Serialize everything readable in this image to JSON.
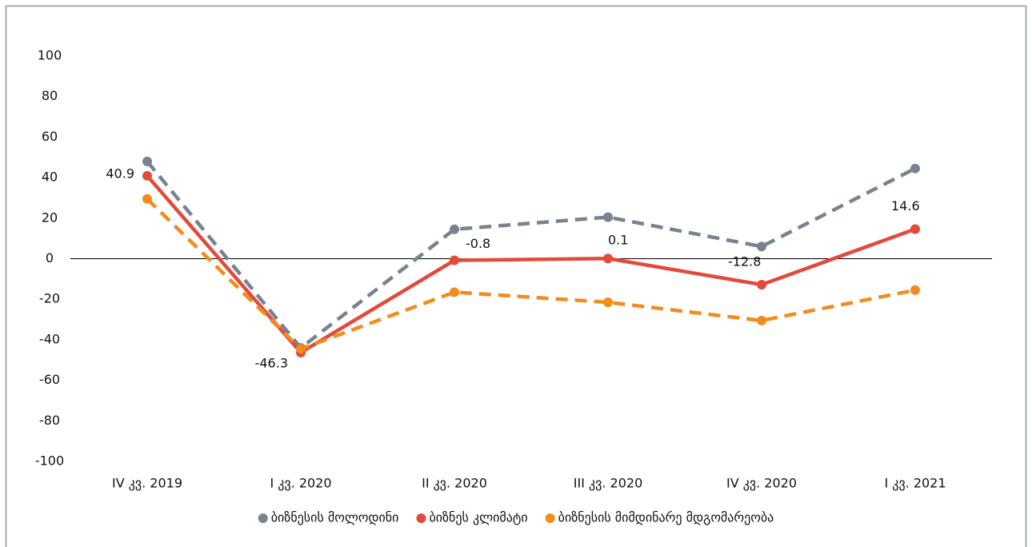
{
  "chart_data": {
    "type": "line",
    "categories": [
      "IV კვ. 2019",
      "I კვ. 2020",
      "II კვ. 2020",
      "III კვ. 2020",
      "IV კვ. 2020",
      "I კვ. 2021"
    ],
    "series": [
      {
        "name": "ბიზნესის მოლოდინი",
        "color": "#78838f",
        "dashed": true,
        "values": [
          48,
          -44,
          14.5,
          20.5,
          6,
          44.5
        ]
      },
      {
        "name": "ბიზნეს კლიმატი",
        "color": "#e24a3b",
        "dashed": false,
        "data_labels": true,
        "values": [
          40.9,
          -46.3,
          -0.8,
          0.1,
          -12.8,
          14.6
        ]
      },
      {
        "name": "ბიზნესის მიმდინარე მდგომარეობა",
        "color": "#f28c1c",
        "dashed": true,
        "values": [
          29.5,
          -44.5,
          -16.5,
          -21.5,
          -30.5,
          -15.5
        ]
      }
    ],
    "ylim": [
      -100,
      100
    ],
    "yticks": [
      -100,
      -80,
      -60,
      -40,
      -20,
      0,
      20,
      40,
      60,
      80,
      100
    ],
    "grid": false,
    "legend": "bottom"
  }
}
